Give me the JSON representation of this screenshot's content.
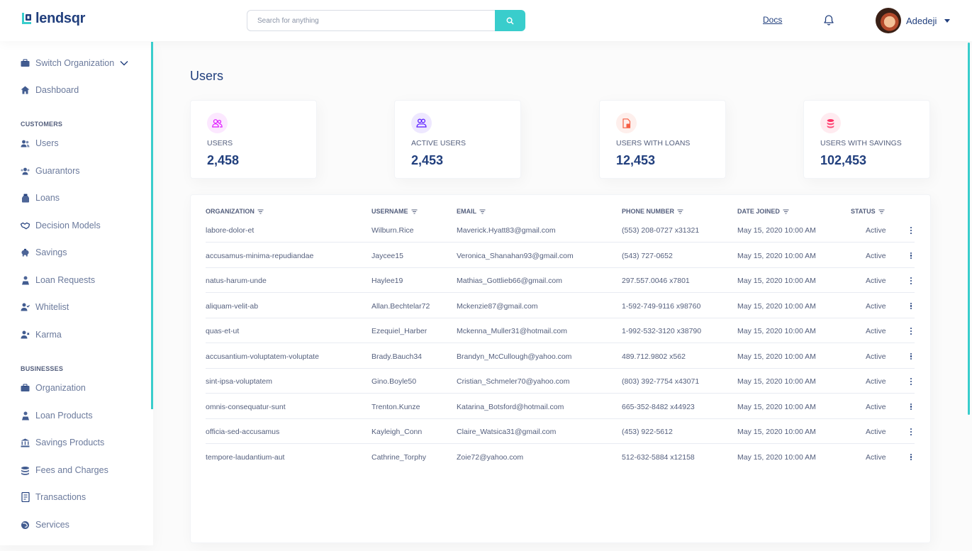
{
  "header": {
    "logo_text": "lendsqr",
    "search_placeholder": "Search for anything",
    "docs_label": "Docs",
    "user_name": "Adedeji"
  },
  "sidebar": {
    "switch_org": "Switch Organization",
    "dashboard": "Dashboard",
    "customers_title": "CUSTOMERS",
    "customers": [
      {
        "label": "Users",
        "icon": "users-icon"
      },
      {
        "label": "Guarantors",
        "icon": "guarantors-icon"
      },
      {
        "label": "Loans",
        "icon": "loans-icon"
      },
      {
        "label": "Decision Models",
        "icon": "handshake-icon"
      },
      {
        "label": "Savings",
        "icon": "piggy-bank-icon"
      },
      {
        "label": "Loan Requests",
        "icon": "loan-request-icon"
      },
      {
        "label": "Whitelist",
        "icon": "user-check-icon"
      },
      {
        "label": "Karma",
        "icon": "user-x-icon"
      }
    ],
    "businesses_title": "BUSINESSES",
    "businesses": [
      {
        "label": "Organization",
        "icon": "briefcase-icon"
      },
      {
        "label": "Loan Products",
        "icon": "loan-request-icon"
      },
      {
        "label": "Savings Products",
        "icon": "bank-icon"
      },
      {
        "label": "Fees and Charges",
        "icon": "coins-icon"
      },
      {
        "label": "Transactions",
        "icon": "transactions-icon"
      },
      {
        "label": "Services",
        "icon": "galaxy-icon"
      }
    ]
  },
  "main": {
    "title": "Users",
    "cards": [
      {
        "label": "USERS",
        "value": "2,458",
        "color": "#DF18FF",
        "bg": "#FCE8FF"
      },
      {
        "label": "ACTIVE USERS",
        "value": "2,453",
        "color": "#5718FF",
        "bg": "#EEE8FF"
      },
      {
        "label": "USERS WITH LOANS",
        "value": "12,453",
        "color": "#F55F44",
        "bg": "#FEEFEC"
      },
      {
        "label": "USERS WITH SAVINGS",
        "value": "102,453",
        "color": "#FF3366",
        "bg": "#FFEBF0"
      }
    ]
  },
  "table": {
    "headers": [
      "ORGANIZATION",
      "USERNAME",
      "EMAIL",
      "PHONE NUMBER",
      "DATE JOINED",
      "STATUS"
    ],
    "rows": [
      [
        "labore-dolor-et",
        "Wilburn.Rice",
        "Maverick.Hyatt83@gmail.com",
        "(553) 208-0727 x31321",
        "May 15, 2020 10:00 AM",
        "Active"
      ],
      [
        "accusamus-minima-repudiandae",
        "Jaycee15",
        "Veronica_Shanahan93@gmail.com",
        "(543) 727-0652",
        "May 15, 2020 10:00 AM",
        "Active"
      ],
      [
        "natus-harum-unde",
        "Haylee19",
        "Mathias_Gottlieb66@gmail.com",
        "297.557.0046 x7801",
        "May 15, 2020 10:00 AM",
        "Active"
      ],
      [
        "aliquam-velit-ab",
        "Allan.Bechtelar72",
        "Mckenzie87@gmail.com",
        "1-592-749-9116 x98760",
        "May 15, 2020 10:00 AM",
        "Active"
      ],
      [
        "quas-et-ut",
        "Ezequiel_Harber",
        "Mckenna_Muller31@hotmail.com",
        "1-992-532-3120 x38790",
        "May 15, 2020 10:00 AM",
        "Active"
      ],
      [
        "accusantium-voluptatem-voluptate",
        "Brady.Bauch34",
        "Brandyn_McCullough@yahoo.com",
        "489.712.9802 x562",
        "May 15, 2020 10:00 AM",
        "Active"
      ],
      [
        "sint-ipsa-voluptatem",
        "Gino.Boyle50",
        "Cristian_Schmeler70@yahoo.com",
        "(803) 392-7754 x43071",
        "May 15, 2020 10:00 AM",
        "Active"
      ],
      [
        "omnis-consequatur-sunt",
        "Trenton.Kunze",
        "Katarina_Botsford@hotmail.com",
        "665-352-8482 x44923",
        "May 15, 2020 10:00 AM",
        "Active"
      ],
      [
        "officia-sed-accusamus",
        "Kayleigh_Conn",
        "Claire_Watsica31@gmail.com",
        "(453) 922-5612",
        "May 15, 2020 10:00 AM",
        "Active"
      ],
      [
        "tempore-laudantium-aut",
        "Cathrine_Torphy",
        "Zoie72@yahoo.com",
        "512-632-5884 x12158",
        "May 15, 2020 10:00 AM",
        "Active"
      ]
    ]
  },
  "colors": {
    "accent": "#39CDCC",
    "brand": "#213F7D",
    "text": "#545F7D"
  }
}
